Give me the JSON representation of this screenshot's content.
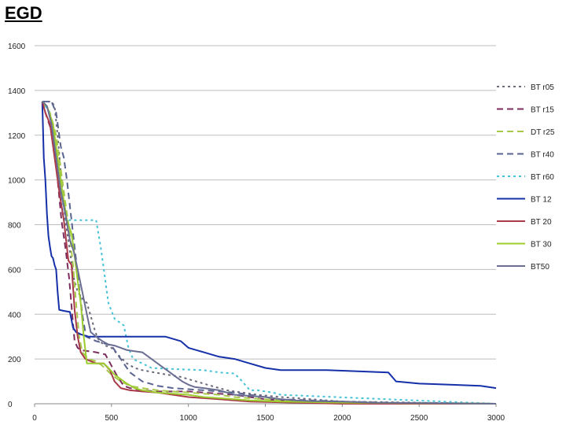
{
  "slide_title": "EGD",
  "chart_data": {
    "type": "line",
    "title": "",
    "xlabel": "",
    "ylabel": "",
    "xlim": [
      0,
      3000
    ],
    "ylim": [
      0,
      1600
    ],
    "x_ticks": [
      0,
      500,
      1000,
      1500,
      2000,
      2500,
      3000
    ],
    "y_ticks": [
      0,
      200,
      400,
      600,
      800,
      1000,
      1200,
      1400,
      1600
    ],
    "grid": "horizontal",
    "legend_position": "right",
    "series": [
      {
        "name": "BT r05",
        "color": "#6a6a7a",
        "dash": "3,4",
        "points": [
          [
            50,
            1350
          ],
          [
            110,
            1350
          ],
          [
            130,
            1330
          ],
          [
            150,
            1200
          ],
          [
            175,
            1000
          ],
          [
            200,
            820
          ],
          [
            230,
            680
          ],
          [
            255,
            560
          ],
          [
            280,
            500
          ],
          [
            310,
            470
          ],
          [
            340,
            450
          ],
          [
            370,
            380
          ],
          [
            395,
            320
          ],
          [
            420,
            280
          ],
          [
            460,
            260
          ],
          [
            500,
            250
          ],
          [
            540,
            220
          ],
          [
            600,
            180
          ],
          [
            650,
            160
          ],
          [
            700,
            150
          ],
          [
            780,
            140
          ],
          [
            860,
            130
          ],
          [
            950,
            120
          ],
          [
            1050,
            100
          ],
          [
            1150,
            80
          ],
          [
            1250,
            60
          ],
          [
            1350,
            50
          ],
          [
            1450,
            40
          ],
          [
            1600,
            30
          ],
          [
            1800,
            20
          ],
          [
            2000,
            10
          ],
          [
            2500,
            5
          ],
          [
            3000,
            0
          ]
        ]
      },
      {
        "name": "BT r15",
        "color": "#7b2d5e",
        "dash": "8,5",
        "points": [
          [
            50,
            1350
          ],
          [
            70,
            1300
          ],
          [
            90,
            1260
          ],
          [
            120,
            1200
          ],
          [
            150,
            1000
          ],
          [
            175,
            820
          ],
          [
            200,
            700
          ],
          [
            225,
            560
          ],
          [
            245,
            400
          ],
          [
            260,
            280
          ],
          [
            280,
            250
          ],
          [
            300,
            240
          ],
          [
            400,
            230
          ],
          [
            460,
            220
          ],
          [
            500,
            170
          ],
          [
            540,
            120
          ],
          [
            580,
            80
          ],
          [
            620,
            70
          ],
          [
            700,
            60
          ],
          [
            800,
            55
          ],
          [
            900,
            55
          ],
          [
            1000,
            55
          ],
          [
            1100,
            50
          ],
          [
            1200,
            45
          ],
          [
            1300,
            40
          ],
          [
            1400,
            30
          ],
          [
            1500,
            20
          ],
          [
            1700,
            10
          ],
          [
            2000,
            0
          ],
          [
            3000,
            0
          ]
        ]
      },
      {
        "name": "DT r25",
        "color": "#a8c84a",
        "dash": "8,5",
        "points": [
          [
            50,
            1350
          ],
          [
            100,
            1300
          ],
          [
            140,
            1200
          ],
          [
            170,
            1050
          ],
          [
            200,
            900
          ],
          [
            225,
            780
          ],
          [
            250,
            620
          ],
          [
            270,
            450
          ],
          [
            290,
            300
          ],
          [
            310,
            230
          ],
          [
            350,
            200
          ],
          [
            400,
            190
          ],
          [
            440,
            170
          ],
          [
            500,
            130
          ],
          [
            560,
            100
          ],
          [
            620,
            80
          ],
          [
            700,
            70
          ],
          [
            800,
            60
          ],
          [
            900,
            55
          ],
          [
            1000,
            50
          ],
          [
            1100,
            45
          ],
          [
            1200,
            40
          ],
          [
            1300,
            30
          ],
          [
            1400,
            25
          ],
          [
            1500,
            20
          ],
          [
            1700,
            10
          ],
          [
            2000,
            5
          ],
          [
            3000,
            0
          ]
        ]
      },
      {
        "name": "BT r40",
        "color": "#5a6490",
        "dash": "8,5",
        "points": [
          [
            50,
            1350
          ],
          [
            110,
            1350
          ],
          [
            140,
            1300
          ],
          [
            170,
            1150
          ],
          [
            190,
            1100
          ],
          [
            210,
            1000
          ],
          [
            235,
            850
          ],
          [
            260,
            700
          ],
          [
            285,
            550
          ],
          [
            310,
            400
          ],
          [
            335,
            300
          ],
          [
            400,
            280
          ],
          [
            450,
            270
          ],
          [
            500,
            260
          ],
          [
            560,
            200
          ],
          [
            620,
            140
          ],
          [
            700,
            100
          ],
          [
            800,
            80
          ],
          [
            900,
            70
          ],
          [
            1000,
            65
          ],
          [
            1100,
            60
          ],
          [
            1200,
            55
          ],
          [
            1300,
            50
          ],
          [
            1400,
            40
          ],
          [
            1500,
            30
          ],
          [
            1600,
            20
          ],
          [
            1800,
            15
          ],
          [
            2000,
            10
          ],
          [
            2300,
            5
          ],
          [
            3000,
            0
          ]
        ]
      },
      {
        "name": "BT r60",
        "color": "#45c2d6",
        "dash": "3,4",
        "points": [
          [
            50,
            1350
          ],
          [
            100,
            1300
          ],
          [
            140,
            1100
          ],
          [
            165,
            950
          ],
          [
            190,
            820
          ],
          [
            220,
            820
          ],
          [
            260,
            820
          ],
          [
            290,
            820
          ],
          [
            320,
            820
          ],
          [
            400,
            820
          ],
          [
            430,
            700
          ],
          [
            450,
            600
          ],
          [
            480,
            450
          ],
          [
            520,
            380
          ],
          [
            580,
            350
          ],
          [
            610,
            250
          ],
          [
            640,
            200
          ],
          [
            700,
            180
          ],
          [
            760,
            160
          ],
          [
            900,
            155
          ],
          [
            1100,
            150
          ],
          [
            1200,
            140
          ],
          [
            1300,
            135
          ],
          [
            1350,
            100
          ],
          [
            1400,
            60
          ],
          [
            1450,
            60
          ],
          [
            1500,
            55
          ],
          [
            1550,
            50
          ],
          [
            1600,
            40
          ],
          [
            3000,
            0
          ]
        ]
      },
      {
        "name": "BT 12",
        "color": "#1530a8",
        "dash": "",
        "points": [
          [
            50,
            1350
          ],
          [
            60,
            1100
          ],
          [
            70,
            1000
          ],
          [
            80,
            850
          ],
          [
            90,
            750
          ],
          [
            100,
            700
          ],
          [
            110,
            660
          ],
          [
            120,
            650
          ],
          [
            130,
            620
          ],
          [
            140,
            600
          ],
          [
            150,
            500
          ],
          [
            160,
            420
          ],
          [
            190,
            415
          ],
          [
            230,
            410
          ],
          [
            250,
            340
          ],
          [
            270,
            320
          ],
          [
            300,
            310
          ],
          [
            350,
            300
          ],
          [
            500,
            300
          ],
          [
            700,
            300
          ],
          [
            850,
            300
          ],
          [
            950,
            280
          ],
          [
            1000,
            250
          ],
          [
            1100,
            230
          ],
          [
            1200,
            210
          ],
          [
            1300,
            200
          ],
          [
            1400,
            180
          ],
          [
            1500,
            160
          ],
          [
            1600,
            150
          ],
          [
            1900,
            150
          ],
          [
            2300,
            140
          ],
          [
            2350,
            100
          ],
          [
            2500,
            90
          ],
          [
            2700,
            85
          ],
          [
            2900,
            80
          ],
          [
            3000,
            70
          ]
        ]
      },
      {
        "name": "BT 20",
        "color": "#a83a4a",
        "dash": "",
        "points": [
          [
            50,
            1350
          ],
          [
            70,
            1300
          ],
          [
            100,
            1250
          ],
          [
            140,
            1050
          ],
          [
            160,
            950
          ],
          [
            190,
            820
          ],
          [
            220,
            640
          ],
          [
            240,
            620
          ],
          [
            260,
            420
          ],
          [
            280,
            300
          ],
          [
            300,
            230
          ],
          [
            330,
            200
          ],
          [
            400,
            180
          ],
          [
            450,
            180
          ],
          [
            490,
            150
          ],
          [
            520,
            100
          ],
          [
            560,
            70
          ],
          [
            620,
            60
          ],
          [
            700,
            55
          ],
          [
            800,
            50
          ],
          [
            900,
            40
          ],
          [
            1000,
            30
          ],
          [
            1100,
            25
          ],
          [
            1200,
            20
          ],
          [
            1300,
            15
          ],
          [
            1400,
            10
          ],
          [
            1700,
            5
          ],
          [
            2000,
            0
          ],
          [
            3000,
            0
          ]
        ]
      },
      {
        "name": "BT 30",
        "color": "#9ccc2e",
        "dash": "",
        "points": [
          [
            50,
            1350
          ],
          [
            80,
            1330
          ],
          [
            120,
            1250
          ],
          [
            150,
            1100
          ],
          [
            180,
            950
          ],
          [
            210,
            820
          ],
          [
            240,
            760
          ],
          [
            260,
            660
          ],
          [
            280,
            550
          ],
          [
            300,
            450
          ],
          [
            320,
            300
          ],
          [
            340,
            180
          ],
          [
            400,
            180
          ],
          [
            450,
            180
          ],
          [
            480,
            160
          ],
          [
            520,
            130
          ],
          [
            560,
            110
          ],
          [
            600,
            90
          ],
          [
            650,
            70
          ],
          [
            700,
            60
          ],
          [
            800,
            50
          ],
          [
            900,
            45
          ],
          [
            1000,
            40
          ],
          [
            1100,
            30
          ],
          [
            1200,
            25
          ],
          [
            1400,
            15
          ],
          [
            1600,
            10
          ],
          [
            2000,
            5
          ],
          [
            3000,
            0
          ]
        ]
      },
      {
        "name": "BT50",
        "color": "#6a6e92",
        "dash": "",
        "points": [
          [
            50,
            1350
          ],
          [
            80,
            1330
          ],
          [
            110,
            1250
          ],
          [
            140,
            1100
          ],
          [
            170,
            950
          ],
          [
            200,
            850
          ],
          [
            230,
            730
          ],
          [
            255,
            680
          ],
          [
            280,
            600
          ],
          [
            310,
            500
          ],
          [
            340,
            400
          ],
          [
            365,
            320
          ],
          [
            400,
            300
          ],
          [
            440,
            280
          ],
          [
            480,
            265
          ],
          [
            520,
            260
          ],
          [
            560,
            250
          ],
          [
            600,
            240
          ],
          [
            650,
            235
          ],
          [
            700,
            230
          ],
          [
            760,
            200
          ],
          [
            820,
            170
          ],
          [
            880,
            140
          ],
          [
            920,
            120
          ],
          [
            960,
            100
          ],
          [
            1000,
            85
          ],
          [
            1040,
            75
          ],
          [
            1100,
            70
          ],
          [
            1150,
            65
          ],
          [
            1200,
            60
          ],
          [
            1300,
            40
          ],
          [
            1400,
            35
          ],
          [
            1500,
            30
          ],
          [
            1600,
            20
          ],
          [
            1700,
            15
          ],
          [
            1800,
            12
          ],
          [
            2000,
            10
          ],
          [
            2200,
            5
          ],
          [
            2500,
            3
          ],
          [
            3000,
            0
          ]
        ]
      }
    ]
  }
}
